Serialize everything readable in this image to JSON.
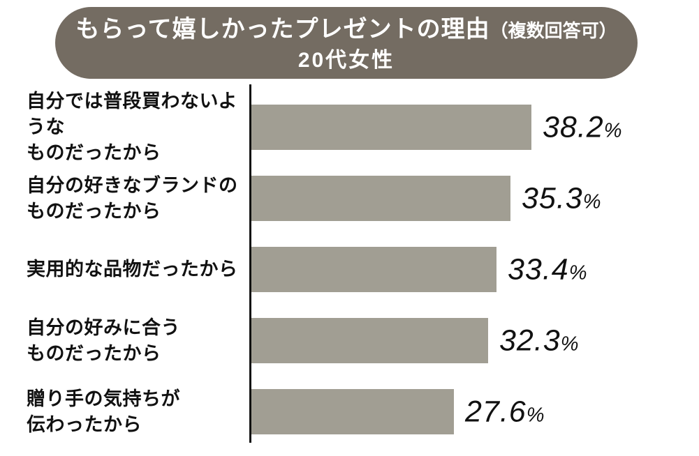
{
  "header": {
    "title_main": "もらって嬉しかったプレゼントの理由",
    "title_paren": "（複数回答可）",
    "title_sub": "20代女性",
    "pill_color": "#746c62",
    "text_color": "#ffffff"
  },
  "chart_data": {
    "type": "bar",
    "orientation": "horizontal",
    "title": "もらって嬉しかったプレゼントの理由（複数回答可）20代女性",
    "unit": "%",
    "xlim": [
      0,
      40
    ],
    "grid": false,
    "legend": false,
    "bar_color": "#a19e93",
    "axis_color": "#111111",
    "label_color": "#111111",
    "categories": [
      "自分では普段買わないようなものだったから",
      "自分の好きなブランドのものだったから",
      "実用的な品物だったから",
      "自分の好みに合うものだったから",
      "贈り手の気持ちが伝わったから"
    ],
    "category_lines": [
      [
        "自分では普段買わないような",
        "ものだったから"
      ],
      [
        "自分の好きなブランドの",
        "ものだったから"
      ],
      [
        "実用的な品物だったから"
      ],
      [
        "自分の好みに合う",
        "ものだったから"
      ],
      [
        "贈り手の気持ちが",
        "伝わったから"
      ]
    ],
    "values": [
      38.2,
      35.3,
      33.4,
      32.3,
      27.6
    ],
    "value_display": [
      "38.2",
      "35.3",
      "33.4",
      "32.3",
      "27.6"
    ],
    "value_suffix": "%"
  }
}
